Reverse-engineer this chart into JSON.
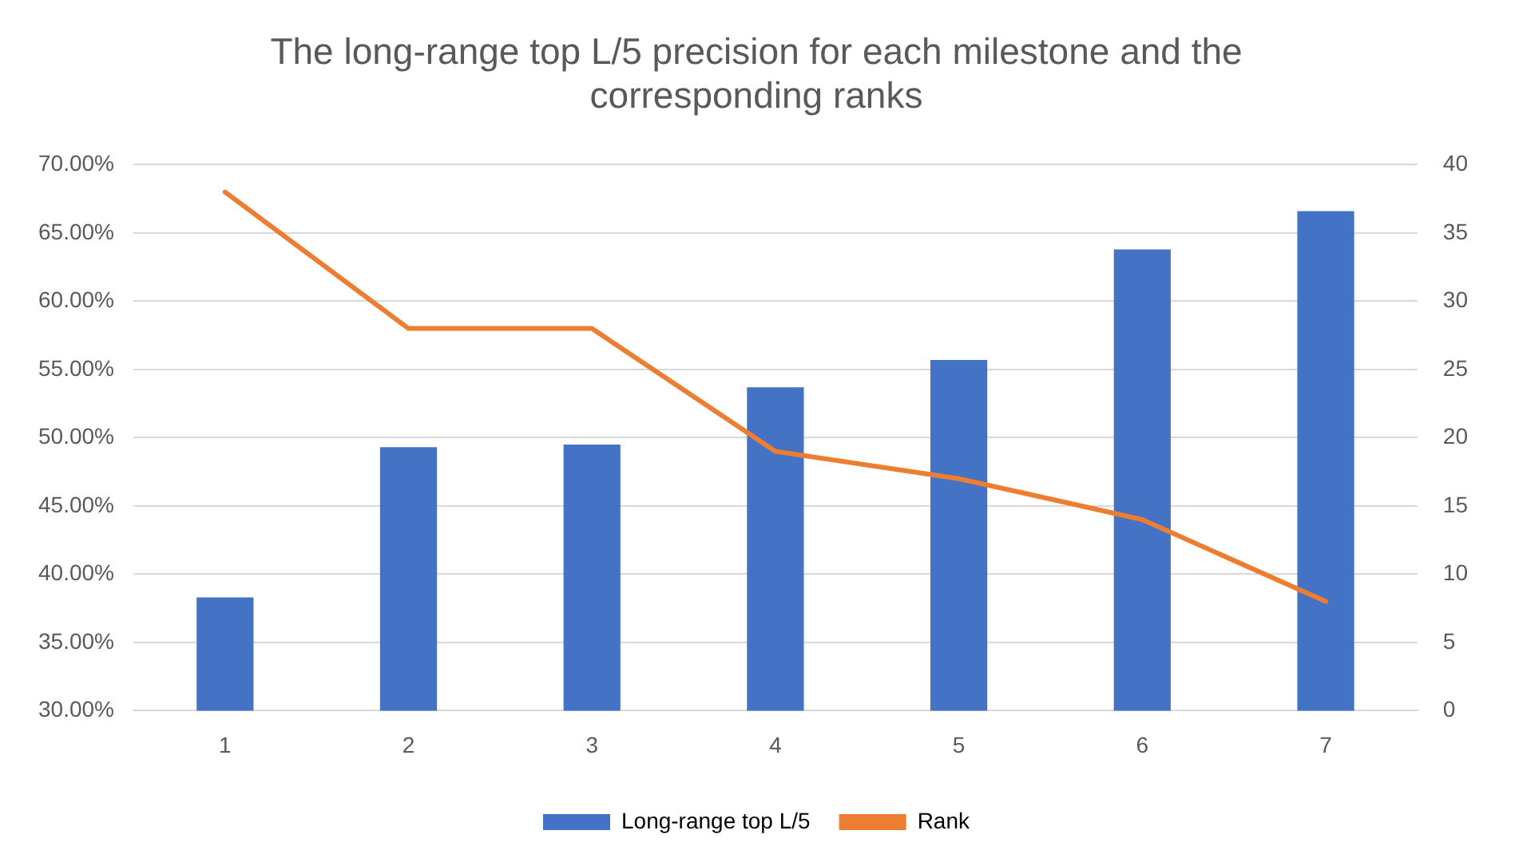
{
  "chart_data": {
    "type": "bar",
    "title": [
      "The long-range top L/5 precision for each milestone and the",
      "corresponding ranks"
    ],
    "categories": [
      "1",
      "2",
      "3",
      "4",
      "5",
      "6",
      "7"
    ],
    "series": [
      {
        "name": "Long-range top L/5",
        "color": "#4472c4",
        "values": [
          38.3,
          49.3,
          49.5,
          53.7,
          55.7,
          63.8,
          66.6
        ]
      },
      {
        "name": "Rank",
        "type": "line",
        "axis": "y2",
        "color": "#ed7d31",
        "marker": "none",
        "values": [
          38,
          28,
          28,
          19,
          17,
          14,
          8
        ]
      }
    ],
    "ylim": [
      30,
      70
    ],
    "yticks": [
      {
        "value": 30,
        "label": "30.00%"
      },
      {
        "value": 35,
        "label": "35.00%"
      },
      {
        "value": 40,
        "label": "40.00%"
      },
      {
        "value": 45,
        "label": "45.00%"
      },
      {
        "value": 50,
        "label": "50.00%"
      },
      {
        "value": 55,
        "label": "55.00%"
      },
      {
        "value": 60,
        "label": "60.00%"
      },
      {
        "value": 65,
        "label": "65.00%"
      },
      {
        "value": 70,
        "label": "70.00%"
      }
    ],
    "y2lim": [
      0,
      40
    ],
    "y2ticks": [
      0,
      5,
      10,
      15,
      20,
      25,
      30,
      35,
      40
    ],
    "grid": "y",
    "legend": "bottom"
  }
}
